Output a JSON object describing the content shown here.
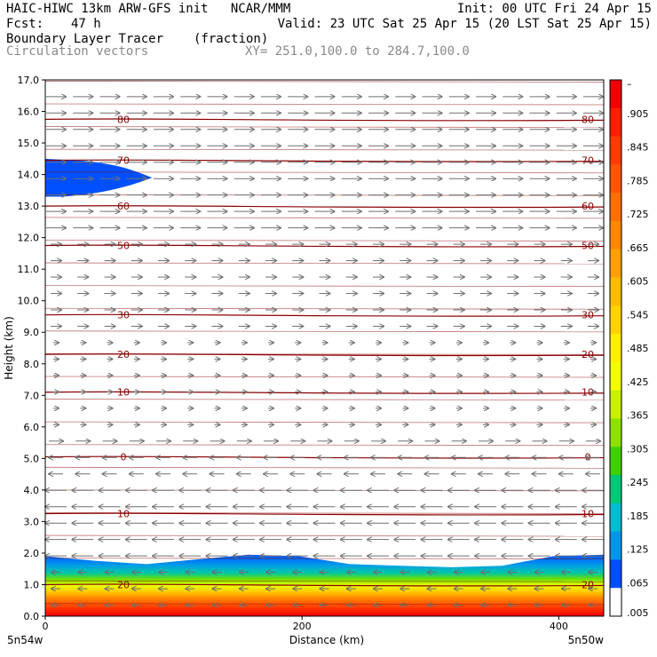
{
  "header": {
    "title": "HAIC-HIWC 13km ARW-GFS init   NCAR/MMM",
    "init": "Init: 00 UTC Fri 24 Apr 15",
    "fcst_label": "Fcst:",
    "fcst_value": "47 h",
    "valid": "Valid: 23 UTC Sat 25 Apr 15 (20 LST Sat 25 Apr 15)",
    "field1_name": "Boundary Layer Tracer",
    "field1_unit": "(fraction)",
    "field2_name": "Circulation vectors",
    "xy_range": "XY= 251.0,100.0 to 284.7,100.0"
  },
  "chart_data": {
    "type": "heatmap",
    "ylabel": "Height (km)",
    "xlabel": "Distance (km)",
    "xlim": [
      0,
      435
    ],
    "ylim": [
      0,
      17
    ],
    "y_ticks": [
      "0.0",
      "1.0",
      "2.0",
      "3.0",
      "4.0",
      "5.0",
      "6.0",
      "7.0",
      "8.0",
      "9.0",
      "10.0",
      "11.0",
      "12.0",
      "13.0",
      "14.0",
      "15.0",
      "16.0",
      "17.0"
    ],
    "x_ticks": [
      {
        "value": 0,
        "label": "0"
      },
      {
        "value": 200,
        "label": "200"
      },
      {
        "value": 400,
        "label": "400"
      }
    ],
    "x_end_labels": {
      "left": "5n54w",
      "right": "5n50w"
    },
    "colorbar": {
      "labels": [
        "–",
        ".905",
        ".845",
        ".785",
        ".725",
        ".665",
        ".605",
        ".545",
        ".485",
        ".425",
        ".365",
        ".305",
        ".245",
        ".185",
        ".125",
        ".065",
        ".005"
      ],
      "colors": [
        "#f00000",
        "#ff2000",
        "#ff3c00",
        "#ff5500",
        "#ff6e00",
        "#ff8800",
        "#ffa000",
        "#ffbb00",
        "#ffd300",
        "#ffee00",
        "#f2ff00",
        "#c8f000",
        "#8ee000",
        "#40d000",
        "#00c878",
        "#00bcd0",
        "#0096e6",
        "#0050ff",
        "#ffffff"
      ]
    },
    "contour_levels": [
      {
        "label": "80",
        "y": 15.75
      },
      {
        "label": "70",
        "y": 14.45
      },
      {
        "label": "60",
        "y": 13.0
      },
      {
        "label": "50",
        "y": 11.75
      },
      {
        "label": "30",
        "y": 9.55
      },
      {
        "label": "20",
        "y": 8.3
      },
      {
        "label": "10",
        "y": 7.1
      },
      {
        "label": "0",
        "y": 5.05
      },
      {
        "label": "10",
        "y": 3.25
      },
      {
        "label": "20",
        "y": 1.0
      }
    ],
    "tracer_layer": {
      "top_km": [
        1.9,
        1.75,
        1.65,
        1.8,
        1.95,
        1.9,
        1.65,
        1.6,
        1.55,
        1.6,
        1.9,
        1.95
      ]
    },
    "upper_tracer_blob": {
      "y_km": [
        13.3,
        14.5
      ],
      "x_km": [
        0,
        75
      ]
    }
  }
}
